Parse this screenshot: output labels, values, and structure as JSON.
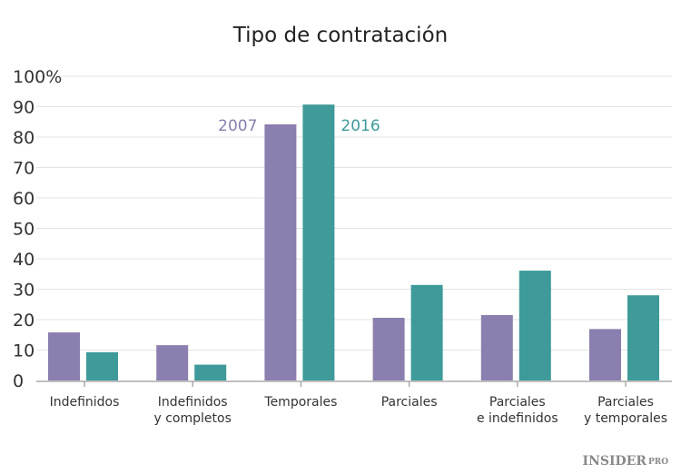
{
  "chart_data": {
    "type": "bar",
    "title": "Tipo de contratación",
    "categories": [
      [
        "Indefinidos"
      ],
      [
        "Indefinidos",
        "y completos"
      ],
      [
        "Temporales"
      ],
      [
        "Parciales"
      ],
      [
        "Parciales",
        "e indefinidos"
      ],
      [
        "Parciales",
        "y temporales"
      ]
    ],
    "series": [
      {
        "name": "2007",
        "color": "#8a7fae",
        "values": [
          15.8,
          11.6,
          84.2,
          20.6,
          21.5,
          16.9
        ]
      },
      {
        "name": "2016",
        "color": "#3f9a9a",
        "values": [
          9.3,
          5.2,
          90.7,
          31.4,
          36.1,
          28.0
        ]
      }
    ],
    "yticks": [
      "0",
      "10",
      "20",
      "30",
      "40",
      "50",
      "60",
      "70",
      "80",
      "90",
      "100%"
    ],
    "ylim": [
      0,
      100
    ],
    "grid": true,
    "legend": "inline labels above Temporales bars"
  },
  "brand": {
    "logo": "INSIDER",
    "logo_suffix": "PRO"
  }
}
